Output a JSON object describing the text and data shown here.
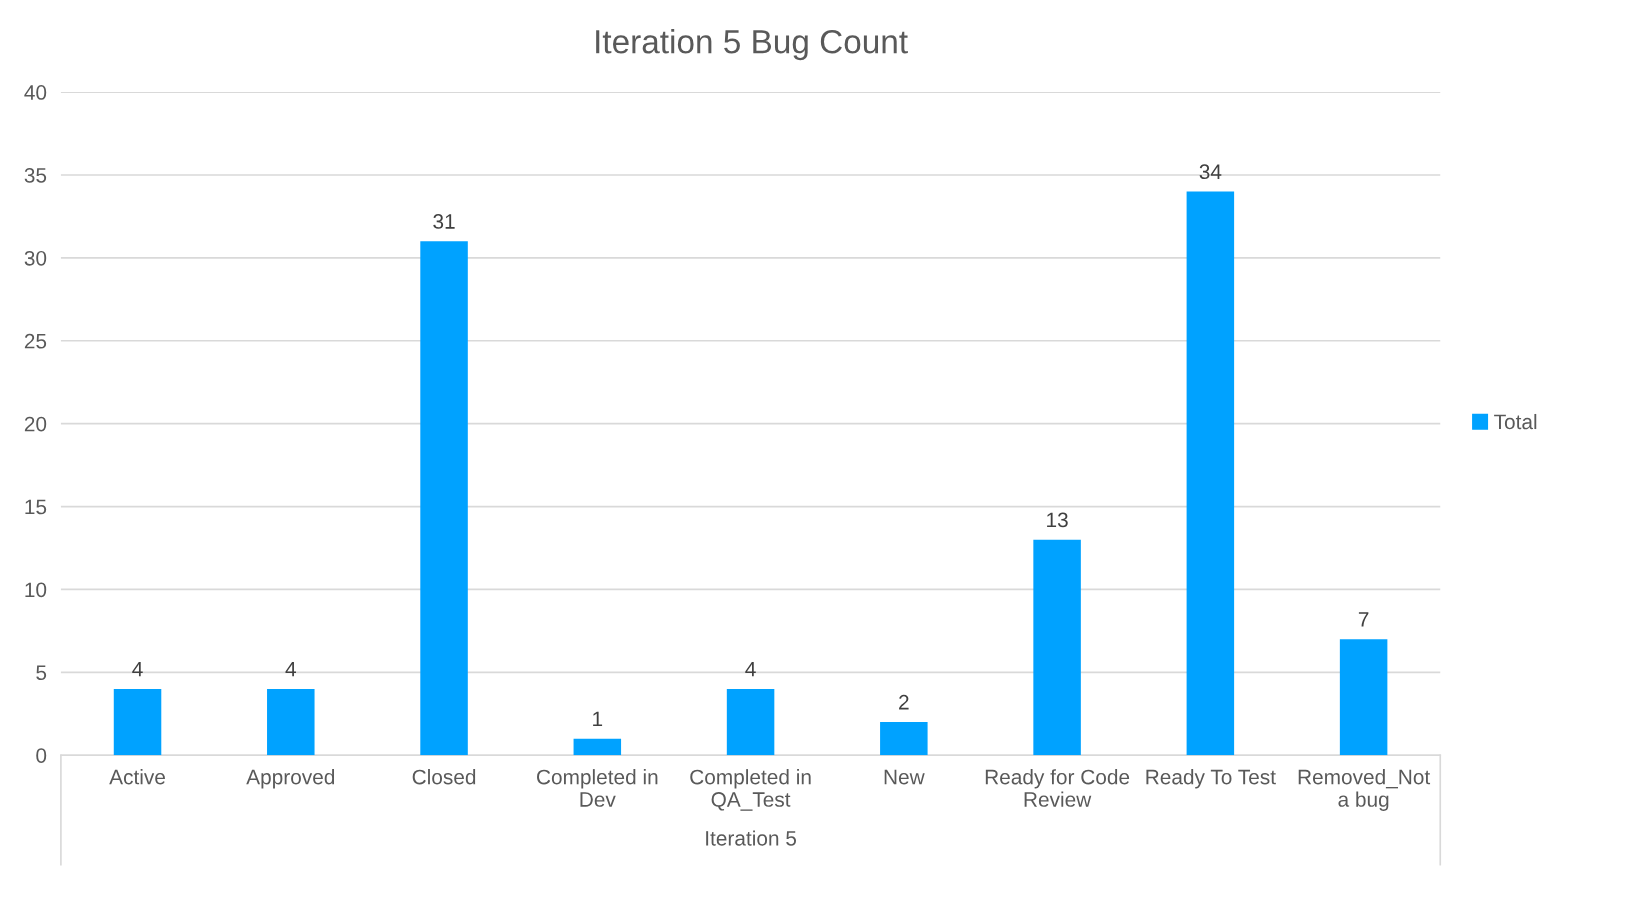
{
  "chart_data": {
    "type": "bar",
    "title": "Iteration 5 Bug Count",
    "xlabel": "Iteration 5",
    "categories": [
      "Active",
      "Approved",
      "Closed",
      "Completed in\nDev",
      "Completed in\nQA_Test",
      "New",
      "Ready for Code\nReview",
      "Ready To Test",
      "Removed_Not\na bug"
    ],
    "series": [
      {
        "name": "Total",
        "color": "#00a2ff",
        "values": [
          4,
          4,
          31,
          1,
          4,
          2,
          13,
          34,
          7
        ]
      }
    ],
    "ylim": [
      0,
      40
    ],
    "yticks": [
      0,
      5,
      10,
      15,
      20,
      25,
      30,
      35,
      40
    ],
    "grid": "y",
    "legend": "right",
    "data_labels": true
  }
}
